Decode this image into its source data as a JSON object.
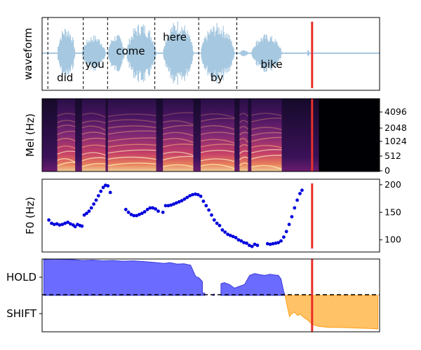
{
  "colors": {
    "waveform": "#a6c8e0",
    "marker": "#e8302a",
    "f0_points": "#0000dd",
    "hold_fill": "#6b6bff",
    "hold_line": "#3b3bd9",
    "shift_fill": "#ffc266",
    "shift_line": "#ff9f1a",
    "divider": "#000000"
  },
  "chart_data": [
    {
      "type": "line",
      "panel": "waveform",
      "ylabel": "waveform",
      "marker_x": 0.8,
      "word_boundaries": [
        0.017,
        0.122,
        0.194,
        0.334,
        0.464,
        0.577
      ],
      "words": [
        {
          "text": "did",
          "x": 0.068,
          "level": "low"
        },
        {
          "text": "you",
          "x": 0.156,
          "level": "mid"
        },
        {
          "text": "come",
          "x": 0.262,
          "level": "high"
        },
        {
          "text": "here",
          "x": 0.393,
          "level": "top"
        },
        {
          "text": "by",
          "x": 0.518,
          "level": "low"
        },
        {
          "text": "bike",
          "x": 0.68,
          "level": "mid"
        }
      ],
      "segments": [
        {
          "x0": 0.045,
          "x1": 0.098,
          "amp": 0.82
        },
        {
          "x0": 0.118,
          "x1": 0.188,
          "amp": 0.55
        },
        {
          "x0": 0.195,
          "x1": 0.245,
          "amp": 0.58
        },
        {
          "x0": 0.25,
          "x1": 0.338,
          "amp": 0.92
        },
        {
          "x0": 0.358,
          "x1": 0.448,
          "amp": 1.0
        },
        {
          "x0": 0.47,
          "x1": 0.57,
          "amp": 0.9
        },
        {
          "x0": 0.585,
          "x1": 0.61,
          "amp": 0.12
        },
        {
          "x0": 0.62,
          "x1": 0.71,
          "amp": 0.58
        },
        {
          "x0": 0.785,
          "x1": 0.792,
          "amp": 0.12
        }
      ]
    },
    {
      "type": "heatmap",
      "panel": "mel",
      "ylabel": "Mel (Hz)",
      "yticks": [
        "0",
        "512",
        "1024",
        "2048",
        "4096"
      ],
      "marker_x": 0.8,
      "voiced_end": 0.82,
      "voiced_regions": [
        [
          0.045,
          0.098
        ],
        [
          0.118,
          0.188
        ],
        [
          0.195,
          0.338
        ],
        [
          0.358,
          0.448
        ],
        [
          0.47,
          0.57
        ],
        [
          0.585,
          0.61
        ],
        [
          0.62,
          0.71
        ]
      ]
    },
    {
      "type": "scatter",
      "panel": "f0",
      "ylabel": "F0 (Hz)",
      "ylim": [
        78,
        210
      ],
      "yticks": [
        100,
        150,
        200
      ],
      "marker_x": 0.8,
      "points": [
        [
          0.02,
          136
        ],
        [
          0.028,
          130
        ],
        [
          0.036,
          128
        ],
        [
          0.044,
          129
        ],
        [
          0.052,
          127
        ],
        [
          0.06,
          128
        ],
        [
          0.068,
          130
        ],
        [
          0.076,
          132
        ],
        [
          0.084,
          129
        ],
        [
          0.092,
          127
        ],
        [
          0.098,
          124
        ],
        [
          0.105,
          128
        ],
        [
          0.112,
          126
        ],
        [
          0.118,
          125
        ],
        [
          0.125,
          145
        ],
        [
          0.132,
          148
        ],
        [
          0.139,
          152
        ],
        [
          0.146,
          158
        ],
        [
          0.153,
          165
        ],
        [
          0.16,
          172
        ],
        [
          0.167,
          180
        ],
        [
          0.174,
          188
        ],
        [
          0.181,
          195
        ],
        [
          0.188,
          199
        ],
        [
          0.195,
          198
        ],
        [
          0.202,
          186
        ],
        [
          0.248,
          155
        ],
        [
          0.256,
          150
        ],
        [
          0.264,
          146
        ],
        [
          0.272,
          144
        ],
        [
          0.28,
          144
        ],
        [
          0.288,
          146
        ],
        [
          0.296,
          148
        ],
        [
          0.304,
          151
        ],
        [
          0.312,
          155
        ],
        [
          0.32,
          158
        ],
        [
          0.328,
          158
        ],
        [
          0.336,
          156
        ],
        [
          0.344,
          152
        ],
        [
          0.358,
          150
        ],
        [
          0.366,
          162
        ],
        [
          0.374,
          162
        ],
        [
          0.382,
          163
        ],
        [
          0.39,
          165
        ],
        [
          0.398,
          167
        ],
        [
          0.406,
          169
        ],
        [
          0.414,
          171
        ],
        [
          0.422,
          174
        ],
        [
          0.43,
          177
        ],
        [
          0.438,
          180
        ],
        [
          0.446,
          182
        ],
        [
          0.454,
          183
        ],
        [
          0.462,
          182
        ],
        [
          0.47,
          179
        ],
        [
          0.478,
          170
        ],
        [
          0.486,
          162
        ],
        [
          0.494,
          154
        ],
        [
          0.502,
          145
        ],
        [
          0.51,
          136
        ],
        [
          0.518,
          130
        ],
        [
          0.526,
          126
        ],
        [
          0.534,
          118
        ],
        [
          0.542,
          114
        ],
        [
          0.55,
          110
        ],
        [
          0.558,
          108
        ],
        [
          0.566,
          106
        ],
        [
          0.574,
          104
        ],
        [
          0.582,
          100
        ],
        [
          0.59,
          98
        ],
        [
          0.598,
          95
        ],
        [
          0.606,
          94
        ],
        [
          0.614,
          90
        ],
        [
          0.622,
          88
        ],
        [
          0.63,
          92
        ],
        [
          0.638,
          90
        ],
        [
          0.668,
          93
        ],
        [
          0.676,
          92
        ],
        [
          0.684,
          93
        ],
        [
          0.692,
          94
        ],
        [
          0.7,
          95
        ],
        [
          0.708,
          98
        ],
        [
          0.716,
          105
        ],
        [
          0.724,
          115
        ],
        [
          0.732,
          128
        ],
        [
          0.74,
          142
        ],
        [
          0.748,
          158
        ],
        [
          0.756,
          172
        ],
        [
          0.764,
          184
        ],
        [
          0.77,
          190
        ]
      ]
    },
    {
      "type": "area",
      "panel": "turn",
      "categories": [
        "HOLD",
        "SHIFT"
      ],
      "ylim": [
        -1,
        1
      ],
      "divider": 0,
      "marker_x": 0.8,
      "hold_segments": [
        [
          [
            0.005,
            0.98
          ],
          [
            0.03,
            1.0
          ],
          [
            0.06,
            0.99
          ],
          [
            0.09,
            0.98
          ],
          [
            0.12,
            0.96
          ],
          [
            0.15,
            0.97
          ],
          [
            0.18,
            0.95
          ],
          [
            0.21,
            0.96
          ],
          [
            0.24,
            0.94
          ],
          [
            0.27,
            0.95
          ],
          [
            0.3,
            0.93
          ],
          [
            0.33,
            0.91
          ],
          [
            0.36,
            0.88
          ],
          [
            0.38,
            0.9
          ],
          [
            0.4,
            0.86
          ],
          [
            0.42,
            0.87
          ],
          [
            0.44,
            0.83
          ],
          [
            0.455,
            0.52
          ],
          [
            0.465,
            0.48
          ],
          [
            0.475,
            0.38
          ]
        ],
        [
          [
            0.478,
            0.07
          ],
          [
            0.482,
            0.06
          ]
        ],
        [
          [
            0.505,
            0.02
          ],
          [
            0.51,
            0.04
          ]
        ],
        [
          [
            0.53,
            0.32
          ],
          [
            0.54,
            0.35
          ],
          [
            0.555,
            0.3
          ],
          [
            0.57,
            0.2
          ],
          [
            0.585,
            0.25
          ],
          [
            0.6,
            0.3
          ],
          [
            0.615,
            0.55
          ],
          [
            0.63,
            0.6
          ],
          [
            0.645,
            0.57
          ],
          [
            0.66,
            0.55
          ],
          [
            0.675,
            0.58
          ],
          [
            0.69,
            0.56
          ],
          [
            0.7,
            0.55
          ],
          [
            0.708,
            0.45
          ],
          [
            0.716,
            0.1
          ],
          [
            0.72,
            0.0
          ]
        ]
      ],
      "shift_segments": [
        [
          [
            0.72,
            0.0
          ],
          [
            0.726,
            -0.28
          ],
          [
            0.733,
            -0.58
          ],
          [
            0.74,
            -0.5
          ],
          [
            0.748,
            -0.46
          ],
          [
            0.757,
            -0.55
          ],
          [
            0.765,
            -0.52
          ],
          [
            0.775,
            -0.6
          ],
          [
            0.79,
            -0.7
          ],
          [
            0.8,
            -0.8
          ],
          [
            0.82,
            -0.85
          ],
          [
            0.85,
            -0.88
          ],
          [
            0.88,
            -0.88
          ],
          [
            0.91,
            -0.89
          ],
          [
            0.94,
            -0.9
          ],
          [
            0.97,
            -0.91
          ],
          [
            0.995,
            -0.92
          ]
        ]
      ]
    }
  ]
}
